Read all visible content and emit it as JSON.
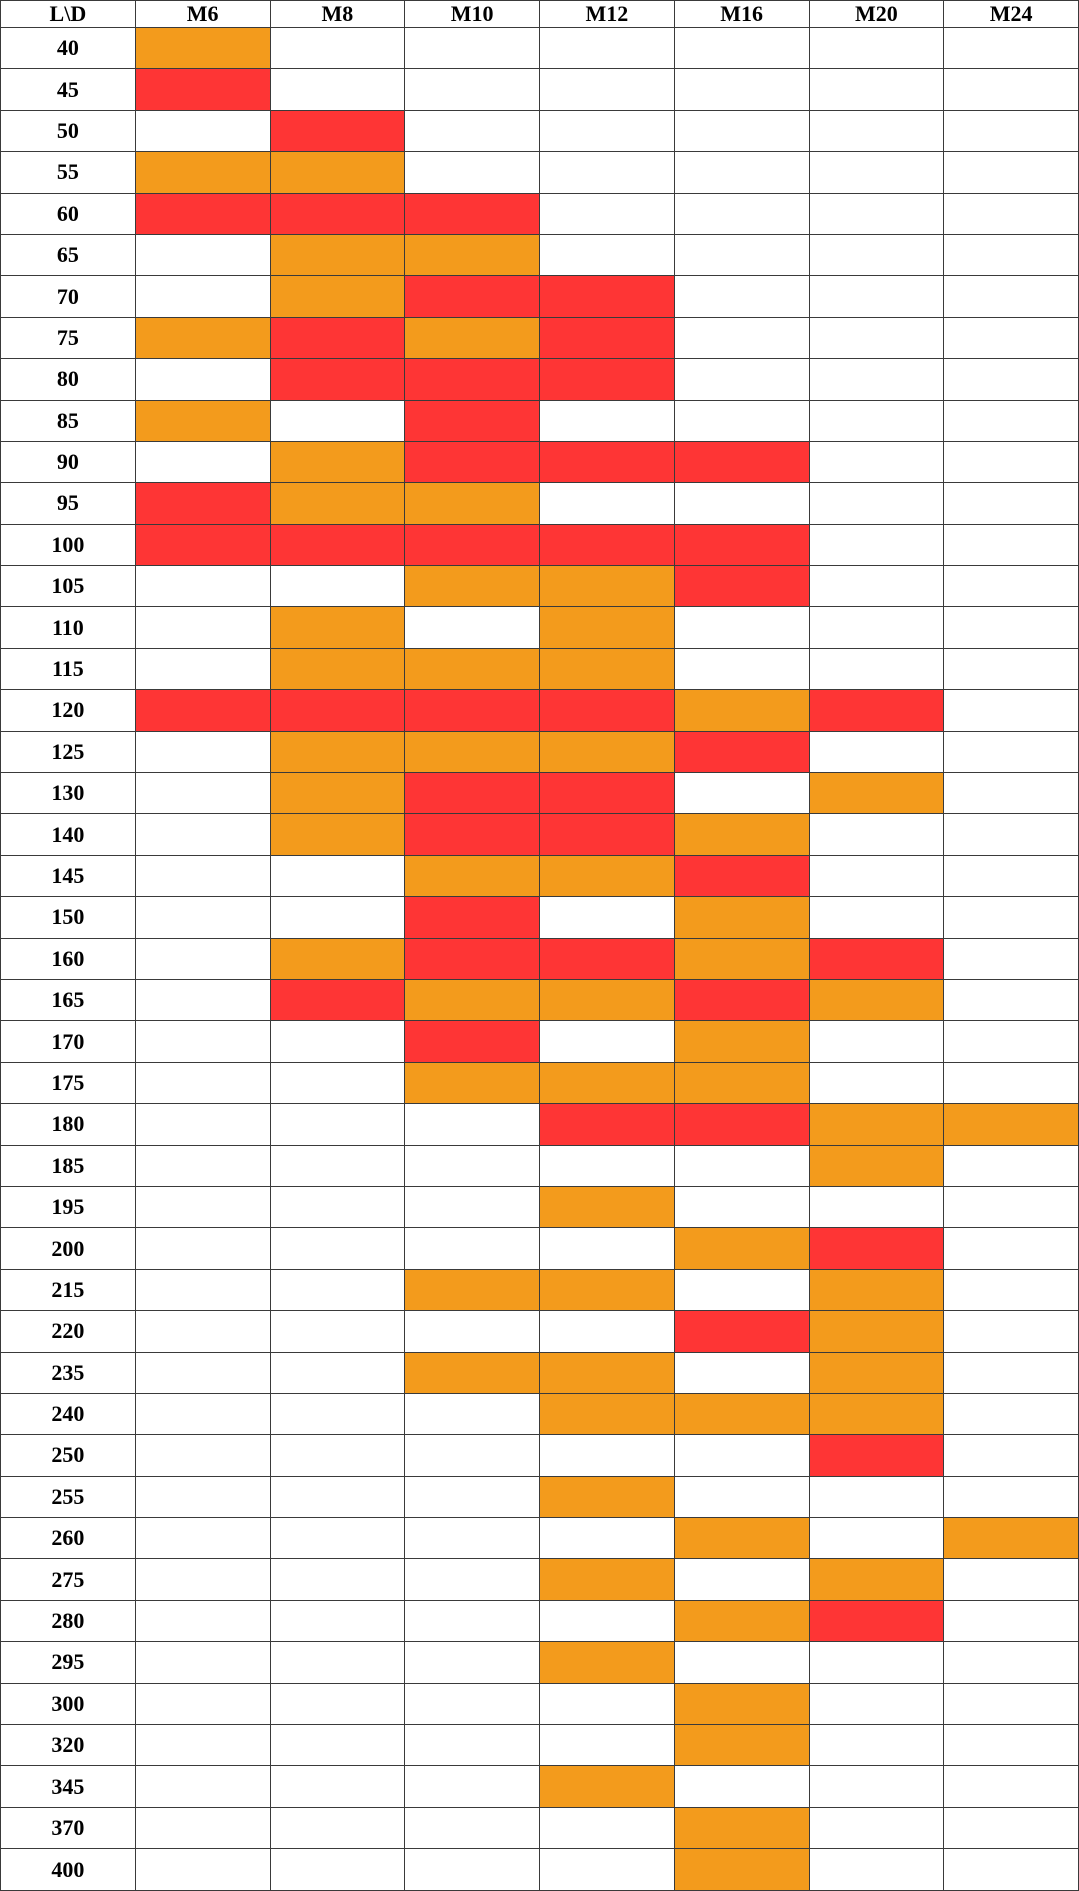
{
  "corner_label": "L\\D",
  "columns": [
    "M6",
    "M8",
    "M10",
    "M12",
    "M16",
    "M20",
    "M24"
  ],
  "legend_colors": {
    "r": "#fe3535",
    "o": "#f39b1c",
    "w": "#ffffff"
  },
  "rows": [
    {
      "label": "40",
      "cells": [
        "o",
        "w",
        "w",
        "w",
        "w",
        "w",
        "w"
      ]
    },
    {
      "label": "45",
      "cells": [
        "r",
        "w",
        "w",
        "w",
        "w",
        "w",
        "w"
      ]
    },
    {
      "label": "50",
      "cells": [
        "w",
        "r",
        "w",
        "w",
        "w",
        "w",
        "w"
      ]
    },
    {
      "label": "55",
      "cells": [
        "o",
        "o",
        "w",
        "w",
        "w",
        "w",
        "w"
      ]
    },
    {
      "label": "60",
      "cells": [
        "r",
        "r",
        "r",
        "w",
        "w",
        "w",
        "w"
      ]
    },
    {
      "label": "65",
      "cells": [
        "w",
        "o",
        "o",
        "w",
        "w",
        "w",
        "w"
      ]
    },
    {
      "label": "70",
      "cells": [
        "w",
        "o",
        "r",
        "r",
        "w",
        "w",
        "w"
      ]
    },
    {
      "label": "75",
      "cells": [
        "o",
        "r",
        "o",
        "r",
        "w",
        "w",
        "w"
      ]
    },
    {
      "label": "80",
      "cells": [
        "w",
        "r",
        "r",
        "r",
        "w",
        "w",
        "w"
      ]
    },
    {
      "label": "85",
      "cells": [
        "o",
        "w",
        "r",
        "w",
        "w",
        "w",
        "w"
      ]
    },
    {
      "label": "90",
      "cells": [
        "w",
        "o",
        "r",
        "r",
        "r",
        "w",
        "w"
      ]
    },
    {
      "label": "95",
      "cells": [
        "r",
        "o",
        "o",
        "w",
        "w",
        "w",
        "w"
      ]
    },
    {
      "label": "100",
      "cells": [
        "r",
        "r",
        "r",
        "r",
        "r",
        "w",
        "w"
      ]
    },
    {
      "label": "105",
      "cells": [
        "w",
        "w",
        "o",
        "o",
        "r",
        "w",
        "w"
      ]
    },
    {
      "label": "110",
      "cells": [
        "w",
        "o",
        "w",
        "o",
        "w",
        "w",
        "w"
      ]
    },
    {
      "label": "115",
      "cells": [
        "w",
        "o",
        "o",
        "o",
        "w",
        "w",
        "w"
      ]
    },
    {
      "label": "120",
      "cells": [
        "r",
        "r",
        "r",
        "r",
        "o",
        "r",
        "w"
      ]
    },
    {
      "label": "125",
      "cells": [
        "w",
        "o",
        "o",
        "o",
        "r",
        "w",
        "w"
      ]
    },
    {
      "label": "130",
      "cells": [
        "w",
        "o",
        "r",
        "r",
        "w",
        "o",
        "w"
      ]
    },
    {
      "label": "140",
      "cells": [
        "w",
        "o",
        "r",
        "r",
        "o",
        "w",
        "w"
      ]
    },
    {
      "label": "145",
      "cells": [
        "w",
        "w",
        "o",
        "o",
        "r",
        "w",
        "w"
      ]
    },
    {
      "label": "150",
      "cells": [
        "w",
        "w",
        "r",
        "w",
        "o",
        "w",
        "w"
      ]
    },
    {
      "label": "160",
      "cells": [
        "w",
        "o",
        "r",
        "r",
        "o",
        "r",
        "w"
      ]
    },
    {
      "label": "165",
      "cells": [
        "w",
        "r",
        "o",
        "o",
        "r",
        "o",
        "w"
      ]
    },
    {
      "label": "170",
      "cells": [
        "w",
        "w",
        "r",
        "w",
        "o",
        "w",
        "w"
      ]
    },
    {
      "label": "175",
      "cells": [
        "w",
        "w",
        "o",
        "o",
        "o",
        "w",
        "w"
      ]
    },
    {
      "label": "180",
      "cells": [
        "w",
        "w",
        "w",
        "r",
        "r",
        "o",
        "o"
      ]
    },
    {
      "label": "185",
      "cells": [
        "w",
        "w",
        "w",
        "w",
        "w",
        "o",
        "w"
      ]
    },
    {
      "label": "195",
      "cells": [
        "w",
        "w",
        "w",
        "o",
        "w",
        "w",
        "w"
      ]
    },
    {
      "label": "200",
      "cells": [
        "w",
        "w",
        "w",
        "w",
        "o",
        "r",
        "w"
      ]
    },
    {
      "label": "215",
      "cells": [
        "w",
        "w",
        "o",
        "o",
        "w",
        "o",
        "w"
      ]
    },
    {
      "label": "220",
      "cells": [
        "w",
        "w",
        "w",
        "w",
        "r",
        "o",
        "w"
      ]
    },
    {
      "label": "235",
      "cells": [
        "w",
        "w",
        "o",
        "o",
        "w",
        "o",
        "w"
      ]
    },
    {
      "label": "240",
      "cells": [
        "w",
        "w",
        "w",
        "o",
        "o",
        "o",
        "w"
      ]
    },
    {
      "label": "250",
      "cells": [
        "w",
        "w",
        "w",
        "w",
        "w",
        "r",
        "w"
      ]
    },
    {
      "label": "255",
      "cells": [
        "w",
        "w",
        "w",
        "o",
        "w",
        "w",
        "w"
      ]
    },
    {
      "label": "260",
      "cells": [
        "w",
        "w",
        "w",
        "w",
        "o",
        "w",
        "o"
      ]
    },
    {
      "label": "275",
      "cells": [
        "w",
        "w",
        "w",
        "o",
        "w",
        "o",
        "w"
      ]
    },
    {
      "label": "280",
      "cells": [
        "w",
        "w",
        "w",
        "w",
        "o",
        "r",
        "w"
      ]
    },
    {
      "label": "295",
      "cells": [
        "w",
        "w",
        "w",
        "o",
        "w",
        "w",
        "w"
      ]
    },
    {
      "label": "300",
      "cells": [
        "w",
        "w",
        "w",
        "w",
        "o",
        "w",
        "w"
      ]
    },
    {
      "label": "320",
      "cells": [
        "w",
        "w",
        "w",
        "w",
        "o",
        "w",
        "w"
      ]
    },
    {
      "label": "345",
      "cells": [
        "w",
        "w",
        "w",
        "o",
        "w",
        "w",
        "w"
      ]
    },
    {
      "label": "370",
      "cells": [
        "w",
        "w",
        "w",
        "w",
        "o",
        "w",
        "w"
      ]
    },
    {
      "label": "400",
      "cells": [
        "w",
        "w",
        "w",
        "w",
        "o",
        "w",
        "w"
      ]
    }
  ]
}
